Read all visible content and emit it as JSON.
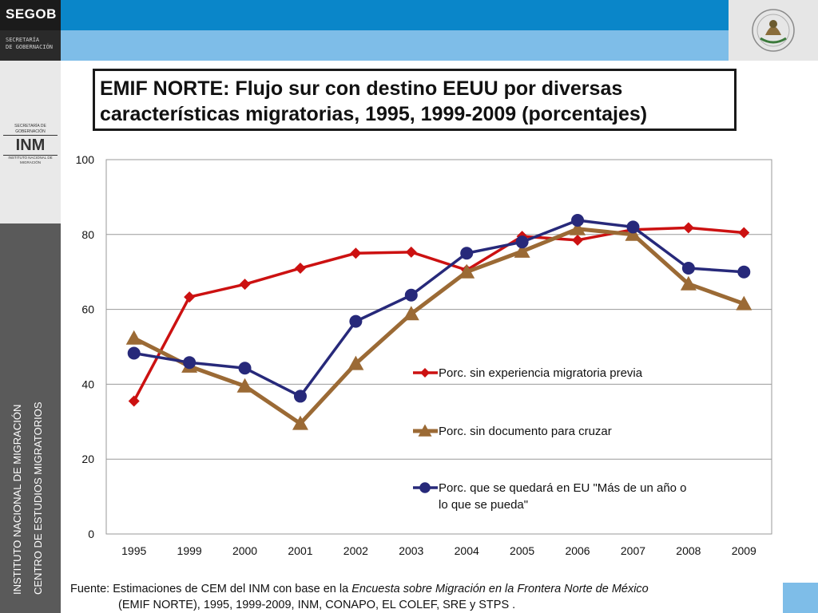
{
  "header": {
    "brand": "SEGOB",
    "brand_sub_1": "SECRETARÍA",
    "brand_sub_2": "DE  GOBERNACIÓN",
    "colors": {
      "dark": "#1b1b1b",
      "blue": "#0a86c9",
      "light_blue": "#7ebde8"
    }
  },
  "sidebar": {
    "inm_logo_top": "SECRETARÍA DE GOBERNACIÓN",
    "inm_logo_main": "INM",
    "inm_logo_bottom": "INSTITUTO NACIONAL DE MIGRACIÓN",
    "vertical_1": "INSTITUTO NACIONAL DE MIGRACIÓN",
    "vertical_2": "CENTRO DE ESTUDIOS MIGRATORIOS"
  },
  "title": {
    "line1": "EMIF NORTE: Flujo sur con destino EEUU por diversas",
    "line2": "características migratorias, 1995, 1999-2009 (porcentajes)"
  },
  "chart_data": {
    "type": "line",
    "categories": [
      "1995",
      "1999",
      "2000",
      "2001",
      "2002",
      "2003",
      "2004",
      "2005",
      "2006",
      "2007",
      "2008",
      "2009"
    ],
    "ylim": [
      0,
      100
    ],
    "yticks": [
      "0",
      "20",
      "40",
      "60",
      "80",
      "100"
    ],
    "grid": true,
    "legend_position": "center-right",
    "series": [
      {
        "name": "Porc. sin experiencia migratoria previa",
        "color": "#cc1111",
        "marker": "diamond",
        "values": [
          35.5,
          63.3,
          66.7,
          71.0,
          75.0,
          75.3,
          70.5,
          79.5,
          78.5,
          81.3,
          81.8,
          80.5
        ]
      },
      {
        "name": "Porc. sin documento para cruzar",
        "color": "#9b6a35",
        "marker": "triangle",
        "values": [
          52.3,
          44.8,
          39.5,
          29.5,
          45.5,
          58.8,
          70.0,
          75.5,
          81.5,
          80.0,
          66.8,
          61.5
        ]
      },
      {
        "name": "Porc. que se quedará en EU \"Más de un año o lo que se pueda\"",
        "color": "#27297a",
        "marker": "circle",
        "values": [
          48.3,
          45.8,
          44.3,
          36.8,
          56.8,
          63.8,
          75.0,
          78.0,
          83.8,
          82.0,
          71.0,
          70.0
        ]
      }
    ]
  },
  "source": {
    "prefix": "Fuente: Estimaciones de CEM del INM con base en la ",
    "italic": "Encuesta sobre Migración en la Frontera Norte de México",
    "line2": "(EMIF NORTE), 1995, 1999-2009, INM, CONAPO, EL COLEF, SRE y STPS ."
  }
}
